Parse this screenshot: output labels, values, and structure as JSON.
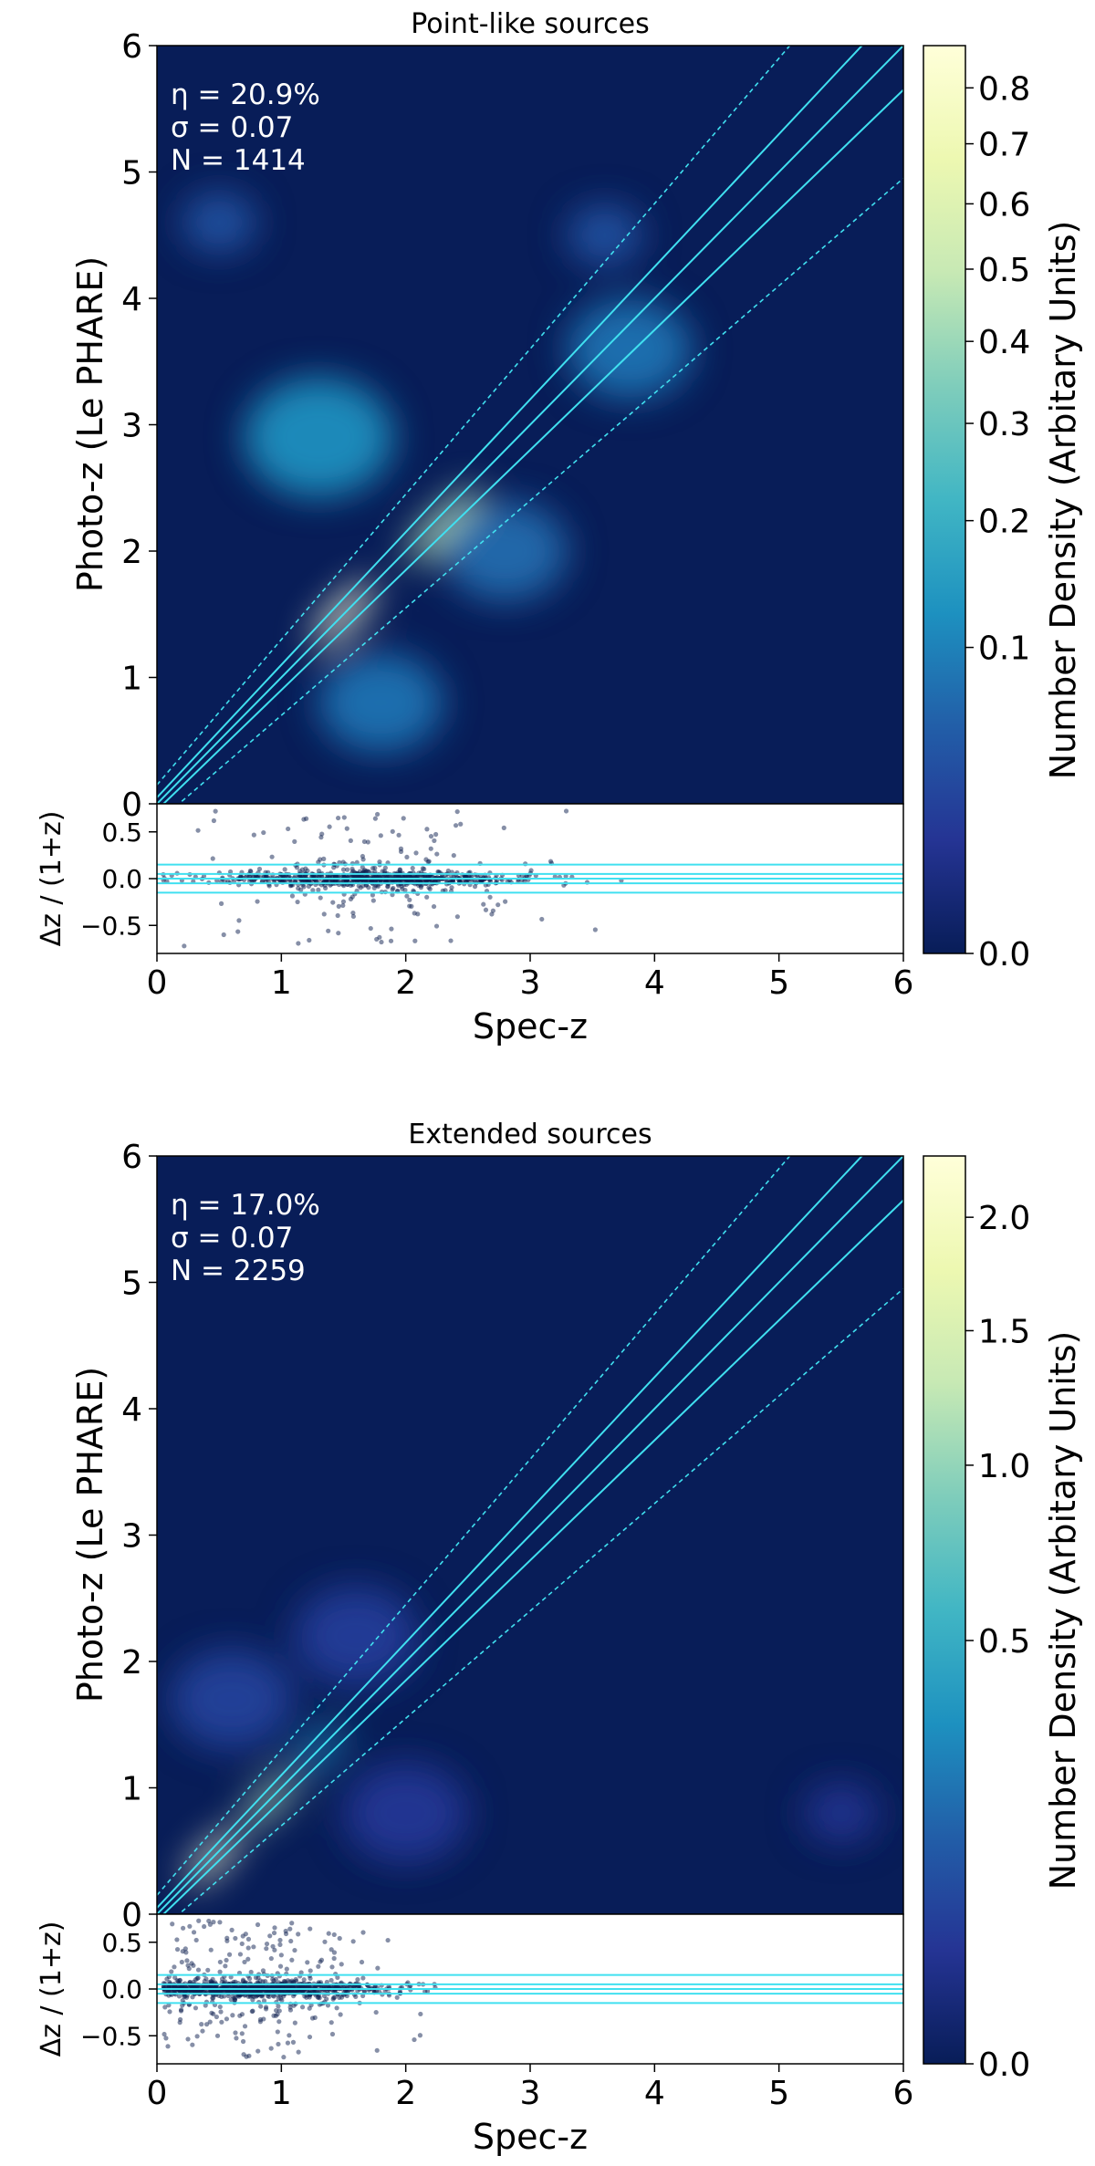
{
  "chart_data": [
    {
      "type": "heatmap",
      "title": "Point-like sources",
      "xlabel": "Spec-z",
      "ylabel": "Photo-z (Le PHARE)",
      "xlim": [
        0,
        6
      ],
      "ylim": [
        0,
        6
      ],
      "xticks": [
        "0",
        "1",
        "2",
        "3",
        "4",
        "5",
        "6"
      ],
      "yticks": [
        "0",
        "1",
        "2",
        "3",
        "4",
        "5",
        "6"
      ],
      "stats": [
        "η = 20.9%",
        "σ = 0.07",
        "N = 1414"
      ],
      "lines": {
        "solid_slopes_log1pz_offsets": [
          -0.05,
          0,
          0.05
        ],
        "dashed_outlier_fraction": 0.15
      },
      "density_blobs": [
        {
          "x": 1.5,
          "y": 1.5,
          "weight": 0.88,
          "spread": 0.35,
          "along_diagonal": true
        },
        {
          "x": 2.3,
          "y": 2.2,
          "weight": 0.45,
          "spread": 0.4,
          "along_diagonal": true
        },
        {
          "x": 1.3,
          "y": 2.9,
          "weight": 0.12,
          "spread": 0.6
        },
        {
          "x": 2.8,
          "y": 2.0,
          "weight": 0.07,
          "spread": 0.5
        },
        {
          "x": 1.8,
          "y": 0.8,
          "weight": 0.08,
          "spread": 0.5
        },
        {
          "x": 3.8,
          "y": 3.6,
          "weight": 0.08,
          "spread": 0.5
        },
        {
          "x": 0.5,
          "y": 4.6,
          "weight": 0.04,
          "spread": 0.3
        },
        {
          "x": 3.6,
          "y": 4.5,
          "weight": 0.04,
          "spread": 0.3
        }
      ],
      "residual_panel": {
        "ylabel": "Δz / (1+z)",
        "ylim": [
          -0.8,
          0.8
        ],
        "yticks": [
          "0.5",
          "0.0",
          "−0.5"
        ],
        "hlines": [
          -0.15,
          -0.05,
          0,
          0.05,
          0.15
        ],
        "points_center_x": 1.7,
        "points_spread_x": 0.6,
        "points_max_x": 4.6,
        "n_points": 900
      },
      "colorbar": {
        "label": "Number Density (Arbitary Units)",
        "ticks": [
          "0.0",
          "0.1",
          "0.2",
          "0.3",
          "0.4",
          "0.5",
          "0.6",
          "0.7",
          "0.8"
        ],
        "tick_values": [
          0.0,
          0.1,
          0.2,
          0.3,
          0.4,
          0.5,
          0.6,
          0.7,
          0.8
        ],
        "max": 0.88,
        "scale": "sqrt",
        "colormap": "YlGnBu"
      }
    },
    {
      "type": "heatmap",
      "title": "Extended sources",
      "xlabel": "Spec-z",
      "ylabel": "Photo-z (Le PHARE)",
      "xlim": [
        0,
        6
      ],
      "ylim": [
        0,
        6
      ],
      "xticks": [
        "0",
        "1",
        "2",
        "3",
        "4",
        "5",
        "6"
      ],
      "yticks": [
        "0",
        "1",
        "2",
        "3",
        "4",
        "5",
        "6"
      ],
      "stats": [
        "η = 17.0%",
        "σ = 0.07",
        "N = 2259"
      ],
      "lines": {
        "solid_slopes_log1pz_offsets": [
          -0.05,
          0,
          0.05
        ],
        "dashed_outlier_fraction": 0.15
      },
      "density_blobs": [
        {
          "x": 0.45,
          "y": 0.45,
          "weight": 2.2,
          "spread": 0.3,
          "along_diagonal": true
        },
        {
          "x": 0.9,
          "y": 0.9,
          "weight": 1.2,
          "spread": 0.3,
          "along_diagonal": true
        },
        {
          "x": 1.3,
          "y": 1.3,
          "weight": 0.35,
          "spread": 0.3,
          "along_diagonal": true
        },
        {
          "x": 0.6,
          "y": 1.7,
          "weight": 0.06,
          "spread": 0.5
        },
        {
          "x": 1.6,
          "y": 2.2,
          "weight": 0.05,
          "spread": 0.5
        },
        {
          "x": 2.0,
          "y": 0.8,
          "weight": 0.04,
          "spread": 0.5
        },
        {
          "x": 5.5,
          "y": 0.8,
          "weight": 0.03,
          "spread": 0.3
        }
      ],
      "residual_panel": {
        "ylabel": "Δz / (1+z)",
        "ylim": [
          -0.8,
          0.8
        ],
        "yticks": [
          "0.5",
          "0.0",
          "−0.5"
        ],
        "hlines": [
          -0.15,
          -0.05,
          0,
          0.05,
          0.15
        ],
        "points_center_x": 0.8,
        "points_spread_x": 0.5,
        "points_max_x": 3.9,
        "n_points": 1200
      },
      "colorbar": {
        "label": "Number Density (Arbitary Units)",
        "ticks": [
          "0.0",
          "0.5",
          "1.0",
          "1.5",
          "2.0"
        ],
        "tick_values": [
          0.0,
          0.5,
          1.0,
          1.5,
          2.0
        ],
        "max": 2.3,
        "scale": "sqrt",
        "colormap": "YlGnBu"
      }
    }
  ]
}
